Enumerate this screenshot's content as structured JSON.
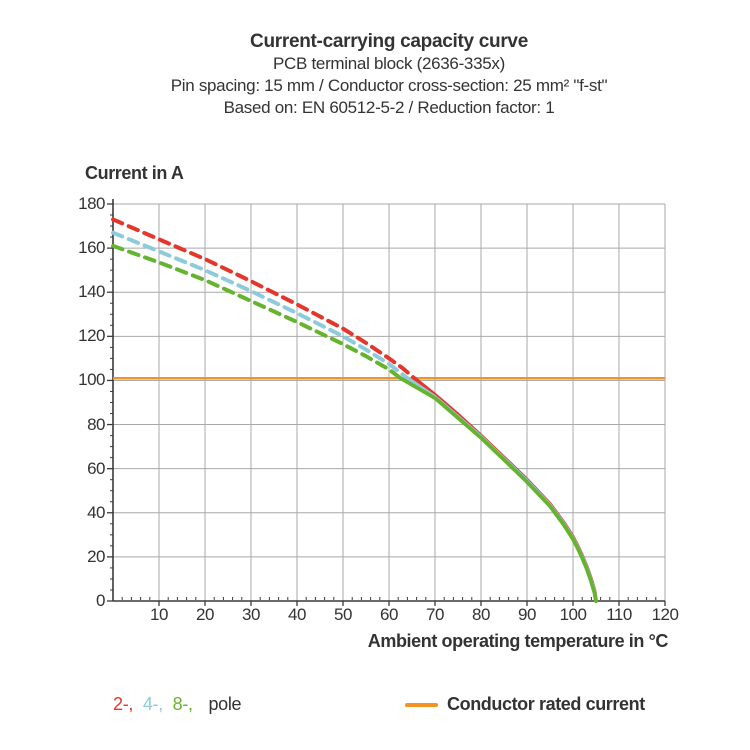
{
  "title": {
    "line1": "Current-carrying capacity curve",
    "line2": "PCB terminal block (2636-335x)",
    "line3": "Pin spacing: 15 mm / Conductor cross-section: 25 mm² \"f-st\"",
    "line4": "Based on: EN 60512-5-2 / Reduction factor: 1"
  },
  "chart_data": {
    "type": "line",
    "title": "Current-carrying capacity curve",
    "subtitle": [
      "PCB terminal block (2636-335x)",
      "Pin spacing: 15 mm / Conductor cross-section: 25 mm² \"f-st\"",
      "Based on: EN 60512-5-2 / Reduction factor: 1"
    ],
    "xlabel": "Ambient operating temperature in °C",
    "ylabel": "Current in A",
    "xlim": [
      0,
      120
    ],
    "ylim": [
      0,
      180
    ],
    "x_major_ticks": [
      10,
      20,
      30,
      40,
      50,
      60,
      70,
      80,
      90,
      100,
      110,
      120
    ],
    "y_major_ticks": [
      0,
      20,
      40,
      60,
      80,
      100,
      120,
      140,
      160,
      180
    ],
    "x_minor_step": 2,
    "y_minor_step": 5,
    "grid": true,
    "legend_position": "bottom",
    "colors": {
      "grid": "#a9a9a9",
      "axis": "#3a3a3a"
    },
    "reference_line": {
      "label": "Conductor rated current",
      "value": 101,
      "color": "#f39422"
    },
    "series": [
      {
        "name": "2-pole",
        "color": "#e5362c",
        "style": "dashed above rated current, solid below",
        "dashed_points": [
          [
            0,
            173
          ],
          [
            10,
            164
          ],
          [
            20,
            155
          ],
          [
            30,
            145
          ],
          [
            40,
            134.5
          ],
          [
            50,
            123.5
          ],
          [
            55,
            117
          ],
          [
            60,
            110
          ],
          [
            63,
            105.5
          ],
          [
            65.5,
            101
          ]
        ],
        "solid_points": [
          [
            65.5,
            101
          ],
          [
            70,
            93.5
          ],
          [
            75,
            84.5
          ],
          [
            80,
            75
          ],
          [
            85,
            65
          ],
          [
            90,
            55
          ],
          [
            95,
            44
          ],
          [
            98,
            35.5
          ],
          [
            100,
            29
          ],
          [
            101,
            25
          ],
          [
            102,
            20.5
          ],
          [
            103,
            15.5
          ],
          [
            104,
            9.5
          ],
          [
            104.7,
            4.5
          ],
          [
            105,
            0
          ]
        ]
      },
      {
        "name": "4-pole",
        "color": "#8dcbdb",
        "style": "dashed above rated current, solid below",
        "dashed_points": [
          [
            0,
            167
          ],
          [
            10,
            158.5
          ],
          [
            20,
            150
          ],
          [
            30,
            140.5
          ],
          [
            40,
            130.5
          ],
          [
            50,
            120
          ],
          [
            55,
            114
          ],
          [
            60,
            107.5
          ],
          [
            64,
            101
          ]
        ],
        "solid_points": [
          [
            64,
            101
          ],
          [
            70,
            92.5
          ],
          [
            75,
            83.5
          ],
          [
            80,
            74.5
          ],
          [
            85,
            64.5
          ],
          [
            90,
            54.5
          ],
          [
            95,
            43.5
          ],
          [
            98,
            35
          ],
          [
            100,
            28.5
          ],
          [
            101,
            24.5
          ],
          [
            102,
            20
          ],
          [
            103,
            15
          ],
          [
            104,
            9
          ],
          [
            104.7,
            4
          ],
          [
            105,
            0
          ]
        ]
      },
      {
        "name": "8-pole",
        "color": "#65b32e",
        "style": "dashed above rated current, solid below",
        "dashed_points": [
          [
            0,
            161
          ],
          [
            10,
            153.5
          ],
          [
            20,
            145.5
          ],
          [
            30,
            136
          ],
          [
            40,
            126.5
          ],
          [
            50,
            116.5
          ],
          [
            55,
            111
          ],
          [
            60,
            105
          ],
          [
            62.5,
            101
          ]
        ],
        "solid_points": [
          [
            62.5,
            101
          ],
          [
            70,
            92
          ],
          [
            75,
            83
          ],
          [
            80,
            74
          ],
          [
            85,
            64
          ],
          [
            90,
            54
          ],
          [
            95,
            43
          ],
          [
            98,
            34.5
          ],
          [
            100,
            28
          ],
          [
            101,
            24
          ],
          [
            102,
            19.5
          ],
          [
            103,
            14.5
          ],
          [
            104,
            8.5
          ],
          [
            104.7,
            3.5
          ],
          [
            105,
            0
          ]
        ]
      }
    ]
  },
  "legend": {
    "pole_items": [
      {
        "label": "2-,",
        "color": "#e5362c"
      },
      {
        "label": "4-,",
        "color": "#8dcbdb"
      },
      {
        "label": "8-,",
        "color": "#65b32e"
      }
    ],
    "pole_suffix": "pole",
    "rated_label": "Conductor rated current"
  }
}
